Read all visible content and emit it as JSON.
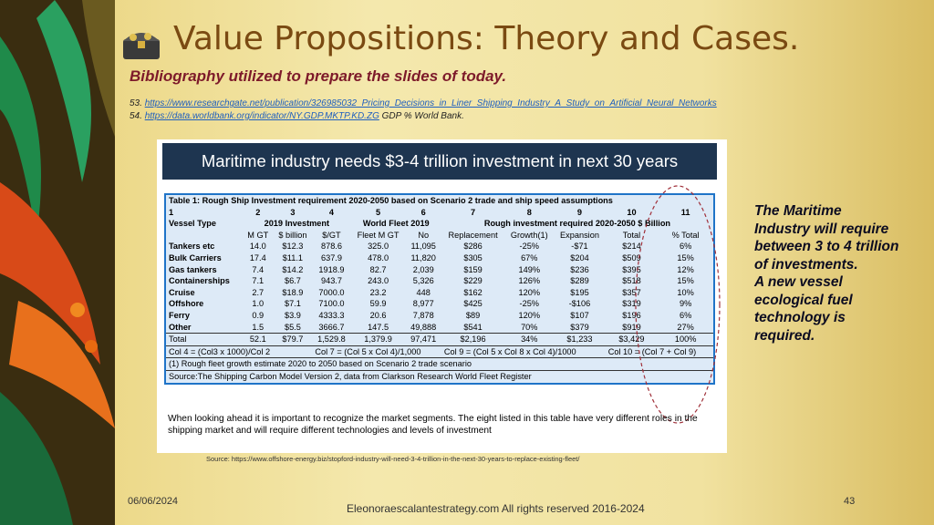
{
  "header": {
    "title": "Value Propositions: Theory and Cases.",
    "subtitle": "Bibliography utilized to prepare the slides of today."
  },
  "references": [
    {
      "number": "53.",
      "link": "https://www.researchgate.net/publication/326985032_Pricing_Decisions_in_Liner_Shipping_Industry_A_Study_on_Artificial_Neural_Networks"
    },
    {
      "number": "54.",
      "link": "https://data.worldbank.org/indicator/NY.GDP.MKTP.KD.ZG",
      "note": "GDP % World Bank."
    }
  ],
  "figure": {
    "banner": "Maritime industry needs $3-4 trillion investment in next 30 years",
    "table": {
      "caption": "Table 1: Rough Ship Investment requirement 2020-2050 based on Scenario 2 trade and ship speed assumptions",
      "column_numbers": [
        "1",
        "2",
        "3",
        "4",
        "5",
        "6",
        "7",
        "8",
        "9",
        "10",
        "11"
      ],
      "groups": [
        "Vessel Type",
        "2019 Investment",
        "World Fleet 2019",
        "Rough investment required 2020-2050 $ Billion"
      ],
      "subheaders": [
        "M GT",
        "$ billion",
        "$/GT",
        "Fleet M GT",
        "No",
        "Replacement",
        "Growth(1)",
        "Expansion",
        "Total",
        "% Total"
      ],
      "rows": [
        [
          "Tankers etc",
          "14.0",
          "$12.3",
          "878.6",
          "325.0",
          "11,095",
          "$286",
          "-25%",
          "-$71",
          "$214",
          "6%"
        ],
        [
          "Bulk Carriers",
          "17.4",
          "$11.1",
          "637.9",
          "478.0",
          "11,820",
          "$305",
          "67%",
          "$204",
          "$509",
          "15%"
        ],
        [
          "Gas tankers",
          "7.4",
          "$14.2",
          "1918.9",
          "82.7",
          "2,039",
          "$159",
          "149%",
          "$236",
          "$395",
          "12%"
        ],
        [
          "Containerships",
          "7.1",
          "$6.7",
          "943.7",
          "243.0",
          "5,326",
          "$229",
          "126%",
          "$289",
          "$518",
          "15%"
        ],
        [
          "Cruise",
          "2.7",
          "$18.9",
          "7000.0",
          "23.2",
          "448",
          "$162",
          "120%",
          "$195",
          "$357",
          "10%"
        ],
        [
          "Offshore",
          "1.0",
          "$7.1",
          "7100.0",
          "59.9",
          "8,977",
          "$425",
          "-25%",
          "-$106",
          "$319",
          "9%"
        ],
        [
          "Ferry",
          "0.9",
          "$3.9",
          "4333.3",
          "20.6",
          "7,878",
          "$89",
          "120%",
          "$107",
          "$196",
          "6%"
        ],
        [
          "Other",
          "1.5",
          "$5.5",
          "3666.7",
          "147.5",
          "49,888",
          "$541",
          "70%",
          "$379",
          "$919",
          "27%"
        ],
        [
          "Total",
          "52.1",
          "$79.7",
          "1,529.8",
          "1,379.9",
          "97,471",
          "$2,196",
          "34%",
          "$1,233",
          "$3,429",
          "100%"
        ]
      ],
      "formulas": [
        "Col 4 = (Col3 x 1000)/Col 2",
        "Col 7 = (Col 5 x Col 4)/1,000",
        "Col 9 = (Col 5 x Col 8 x Col 4)/1000",
        "Col 10 = (Col 7 + Col 9)"
      ],
      "notes": [
        "(1) Rough fleet growth estimate 2020 to 2050 based on Scenario 2 trade scenario",
        "Source:The Shipping Carbon Model Version 2, data from Clarkson Research World Fleet Register"
      ]
    },
    "paragraph": "When looking ahead it is important to recognize the market segments. The eight listed in this table have very different roles in the shipping market and will require different technologies and levels of investment"
  },
  "source": "Source: https://www.offshore-energy.biz/stopford-industry-will-need-3-4-trillion-in-the-next-30-years-to-replace-existing-fleet/",
  "side_text": [
    "The Maritime Industry will require between 3 to 4 trillion of investments.",
    "A new vessel ecological fuel technology is required."
  ],
  "footer": {
    "date": "06/06/2024",
    "center": "Eleonoraescalantestrategy.com  All rights reserved 2016-2024",
    "page": "43"
  }
}
